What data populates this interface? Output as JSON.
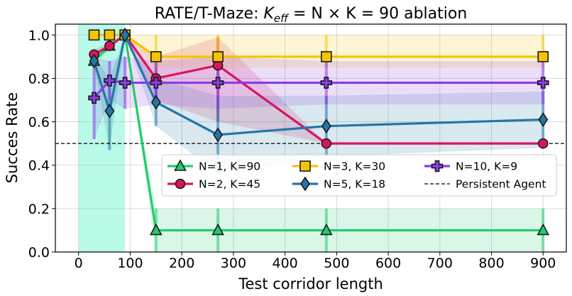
{
  "chart_data": {
    "type": "line",
    "title_prefix": "RATE/T-Maze: ",
    "title_math": "K",
    "title_math_sub": "eff",
    "title_rest": " = N × K = 90 ablation",
    "xlabel": "Test corridor length",
    "ylabel": "Succes Rate",
    "xlim": [
      -45,
      945
    ],
    "ylim": [
      0.0,
      1.05
    ],
    "xticks": [
      0,
      100,
      200,
      300,
      400,
      500,
      600,
      700,
      800,
      900
    ],
    "yticks": [
      "0.0",
      "0.2",
      "0.4",
      "0.6",
      "0.8",
      "1.0"
    ],
    "ytick_values": [
      0.0,
      0.2,
      0.4,
      0.6,
      0.8,
      1.0
    ],
    "grid": true,
    "legend_position": "center-right",
    "training_region": {
      "x0": 0,
      "x1": 90,
      "color": "#7ff5d6"
    },
    "reference_line": {
      "name": "Persistent Agent",
      "y": 0.5,
      "color": "#000000"
    },
    "series": [
      {
        "name": "N=1, K=90",
        "color": "#22cc6e",
        "marker": "triangle",
        "x": [
          30,
          60,
          90,
          150,
          270,
          480,
          900
        ],
        "y": [
          0.88,
          0.95,
          1.0,
          0.1,
          0.1,
          0.1,
          0.1
        ],
        "lower": [
          0.86,
          0.93,
          1.0,
          0.0,
          0.0,
          0.0,
          0.0
        ],
        "upper": [
          0.9,
          0.97,
          1.0,
          0.2,
          0.2,
          0.2,
          0.2
        ]
      },
      {
        "name": "N=2, K=45",
        "color": "#d6165c",
        "marker": "circle",
        "x": [
          30,
          60,
          90,
          150,
          270,
          480,
          900
        ],
        "y": [
          0.91,
          0.95,
          1.0,
          0.8,
          0.86,
          0.5,
          0.5
        ],
        "lower": [
          0.89,
          0.93,
          1.0,
          0.7,
          0.6,
          0.5,
          0.5
        ],
        "upper": [
          0.93,
          0.97,
          1.0,
          0.9,
          0.99,
          0.5,
          0.5
        ]
      },
      {
        "name": "N=3, K=30",
        "color": "#f5c400",
        "marker": "square",
        "x": [
          30,
          60,
          90,
          150,
          270,
          480,
          900
        ],
        "y": [
          1.0,
          1.0,
          1.0,
          0.9,
          0.9,
          0.9,
          0.9
        ],
        "lower": [
          1.0,
          1.0,
          1.0,
          0.85,
          0.85,
          0.85,
          0.85
        ],
        "upper": [
          1.0,
          1.0,
          1.0,
          1.0,
          1.0,
          1.0,
          1.0
        ]
      },
      {
        "name": "N=5, K=18",
        "color": "#2475a8",
        "marker": "diamond",
        "x": [
          30,
          60,
          90,
          150,
          270,
          480,
          900
        ],
        "y": [
          0.88,
          0.65,
          1.0,
          0.69,
          0.54,
          0.58,
          0.61
        ],
        "lower": [
          0.86,
          0.47,
          1.0,
          0.58,
          0.36,
          0.44,
          0.48
        ],
        "upper": [
          0.9,
          0.8,
          1.0,
          0.8,
          0.72,
          0.72,
          0.74
        ]
      },
      {
        "name": "N=10, K=9",
        "color": "#8a3be6",
        "marker": "plus",
        "x": [
          30,
          60,
          90,
          150,
          270,
          480,
          900
        ],
        "y": [
          0.71,
          0.79,
          0.78,
          0.78,
          0.78,
          0.78,
          0.78
        ],
        "lower": [
          0.52,
          0.7,
          0.66,
          0.68,
          0.66,
          0.68,
          0.68
        ],
        "upper": [
          0.9,
          0.88,
          0.9,
          0.88,
          0.9,
          0.88,
          0.88
        ]
      }
    ]
  }
}
